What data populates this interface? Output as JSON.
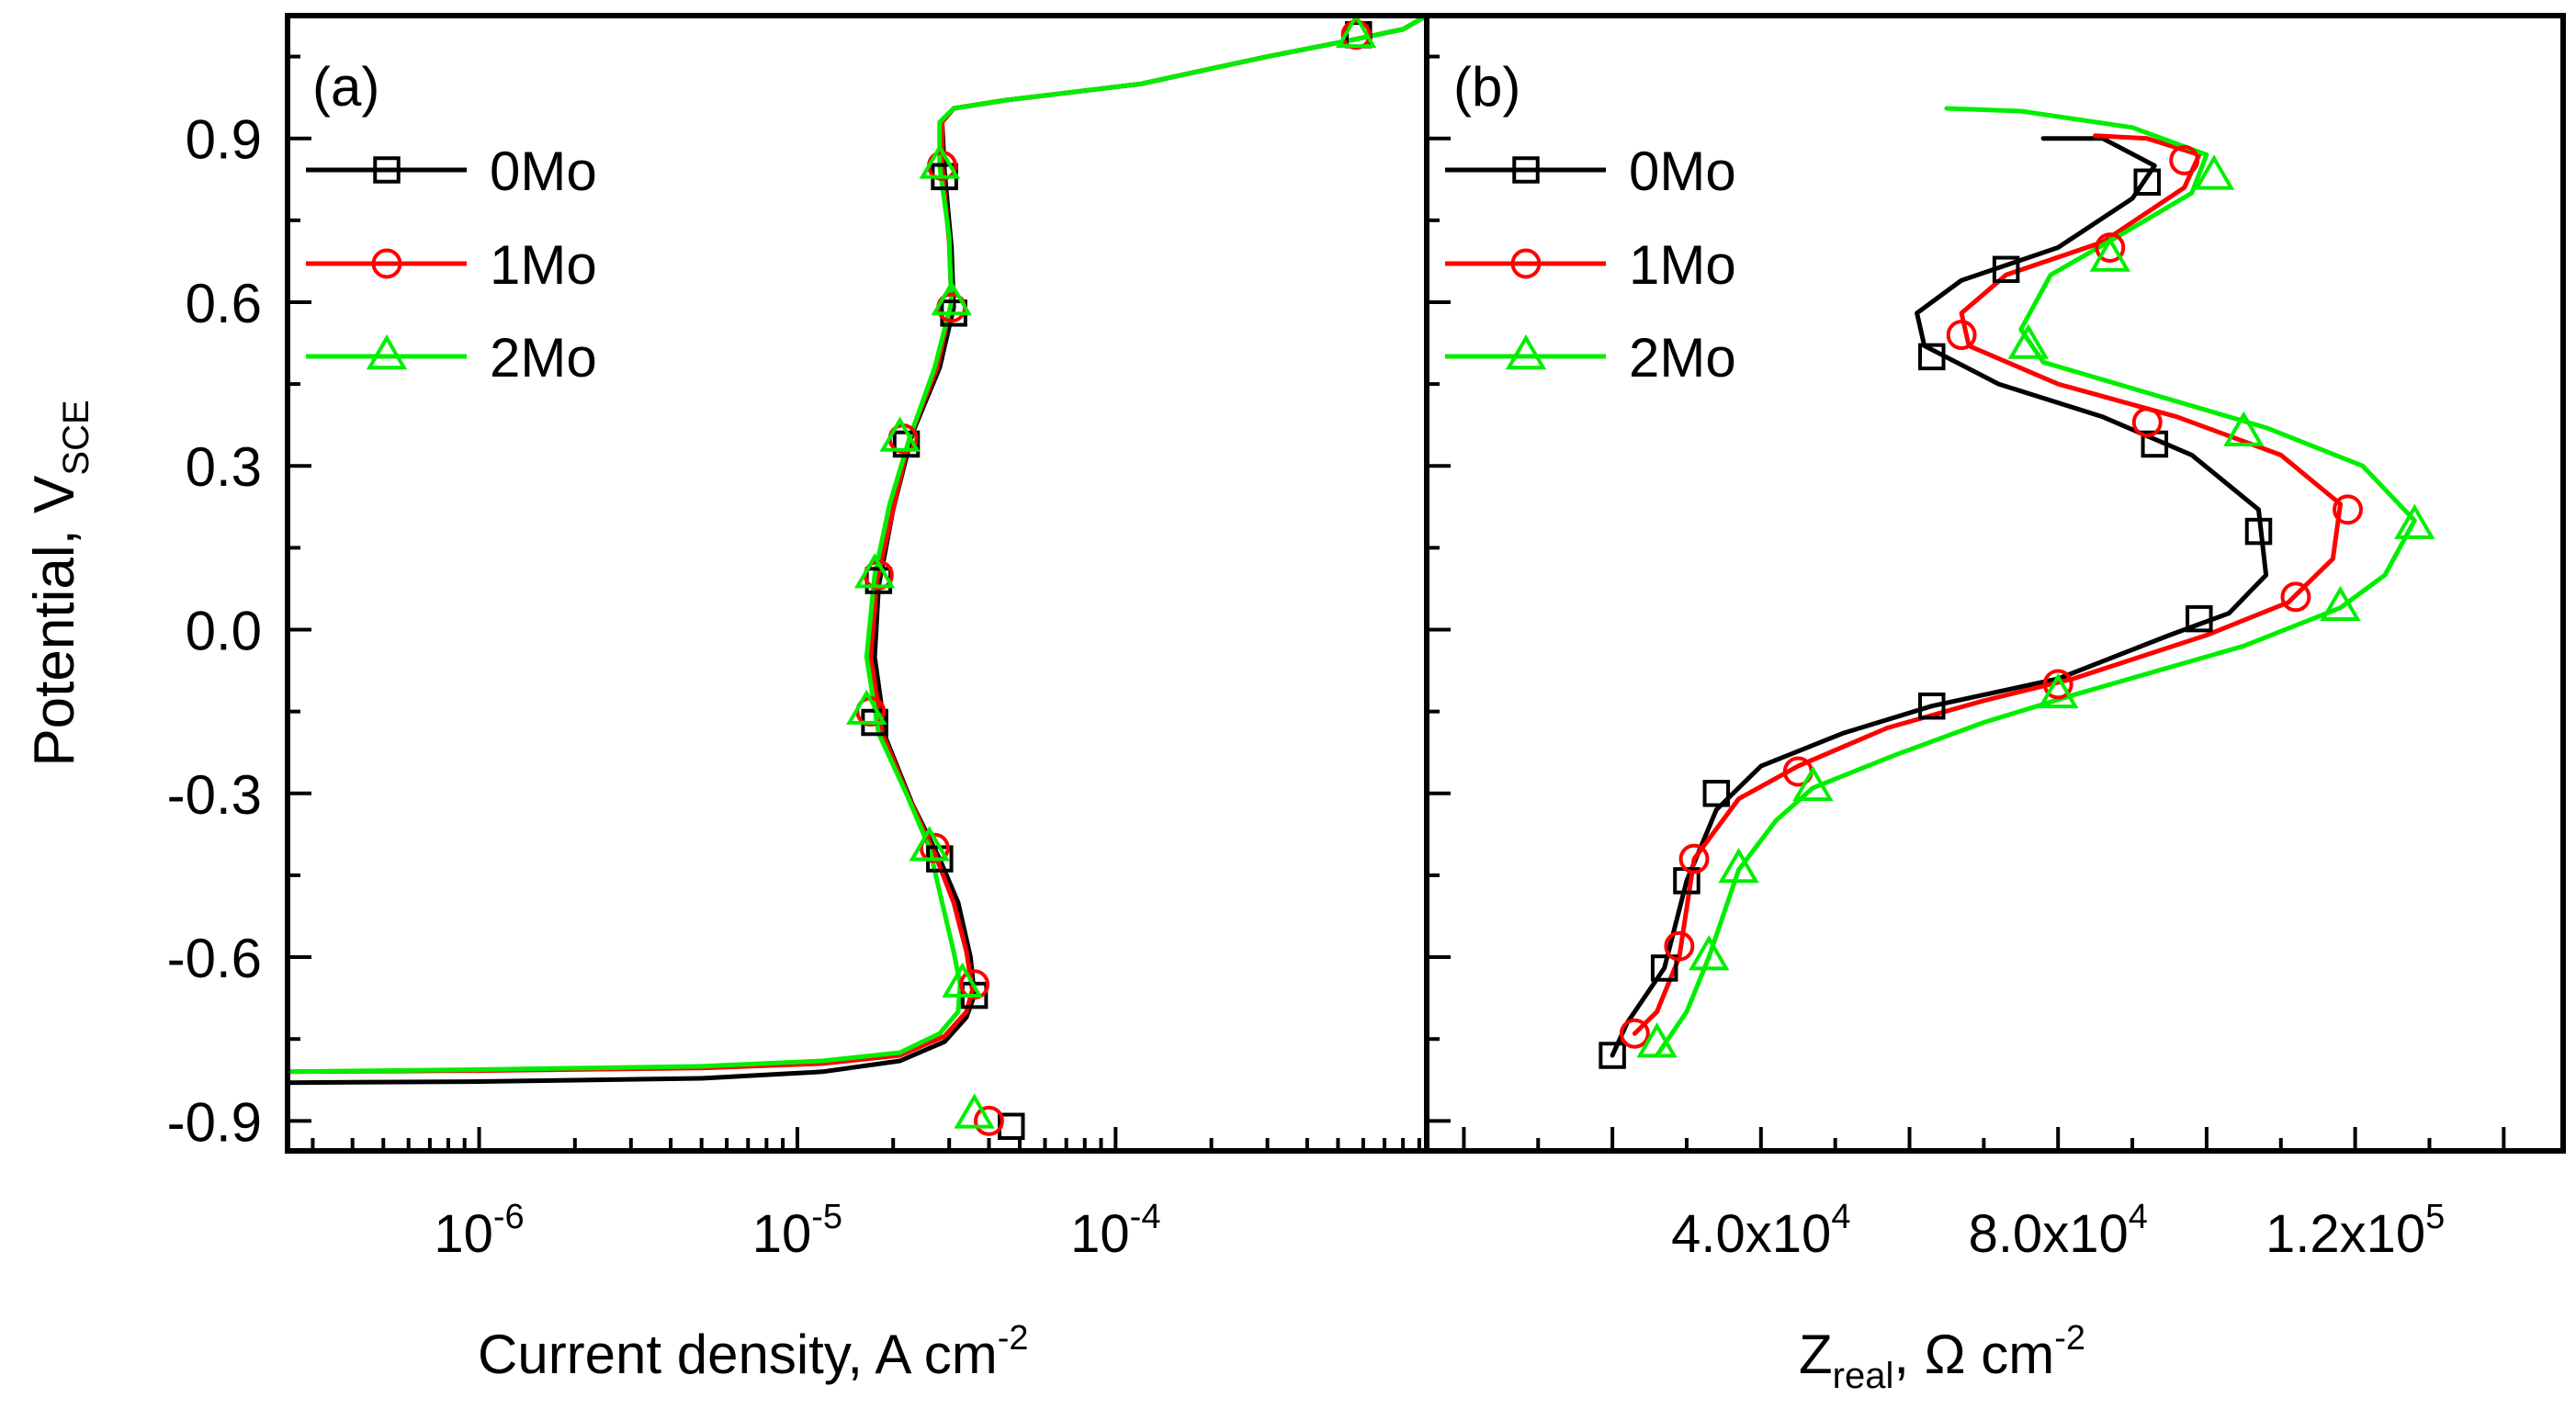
{
  "chart_data": [
    {
      "type": "line",
      "panel_label": "(a)",
      "xlabel": "Current density, A cm",
      "xlabel_sup": "-2",
      "ylabel": "Potential, V",
      "ylabel_sub": "SCE",
      "x_scale": "log",
      "xlim": [
        2.5e-07,
        0.00095
      ],
      "ylim": [
        -0.955,
        1.125
      ],
      "x_ticks": [
        {
          "value": 1e-06,
          "base": "10",
          "exp": "-6"
        },
        {
          "value": 1e-05,
          "base": "10",
          "exp": "-5"
        },
        {
          "value": 0.0001,
          "base": "10",
          "exp": "-4"
        }
      ],
      "y_ticks": [
        {
          "value": 0.9,
          "label": "0.9"
        },
        {
          "value": 0.6,
          "label": "0.6"
        },
        {
          "value": 0.3,
          "label": "0.3"
        },
        {
          "value": 0.0,
          "label": "0.0"
        },
        {
          "value": -0.3,
          "label": "-0.3"
        },
        {
          "value": -0.6,
          "label": "-0.6"
        },
        {
          "value": -0.9,
          "label": "-0.9"
        }
      ],
      "legend_position": "top-left",
      "grid": false,
      "series": [
        {
          "name": "0Mo",
          "color": "#000000",
          "marker": "square",
          "points": [
            [
              2.5e-07,
              -0.83
            ],
            [
              1e-06,
              -0.828
            ],
            [
              5e-06,
              -0.822
            ],
            [
              1.2e-05,
              -0.81
            ],
            [
              2.1e-05,
              -0.79
            ],
            [
              2.9e-05,
              -0.755
            ],
            [
              3.4e-05,
              -0.71
            ],
            [
              3.6e-05,
              -0.67
            ],
            [
              3.5e-05,
              -0.6
            ],
            [
              3.2e-05,
              -0.5
            ],
            [
              2.8e-05,
              -0.42
            ],
            [
              2.3e-05,
              -0.32
            ],
            [
              1.9e-05,
              -0.2
            ],
            [
              1.75e-05,
              -0.05
            ],
            [
              1.8e-05,
              0.08
            ],
            [
              2e-05,
              0.22
            ],
            [
              2.3e-05,
              0.36
            ],
            [
              2.8e-05,
              0.48
            ],
            [
              3.1e-05,
              0.59
            ],
            [
              3.05e-05,
              0.7
            ],
            [
              2.9e-05,
              0.84
            ],
            [
              2.85e-05,
              0.93
            ],
            [
              3.1e-05,
              0.955
            ],
            [
              4.5e-05,
              0.97
            ],
            [
              0.00012,
              1.0
            ],
            [
              0.0003,
              1.05
            ],
            [
              0.00055,
              1.08
            ],
            [
              0.0008,
              1.1
            ],
            [
              0.00095,
              1.125
            ]
          ],
          "markers": [
            [
              2.9e-05,
              0.83
            ],
            [
              3.1e-05,
              0.58
            ],
            [
              2.2e-05,
              0.34
            ],
            [
              1.8e-05,
              0.09
            ],
            [
              1.75e-05,
              -0.17
            ],
            [
              2.8e-05,
              -0.42
            ],
            [
              3.6e-05,
              -0.67
            ],
            [
              4.7e-05,
              -0.91
            ],
            [
              0.00058,
              1.09
            ]
          ]
        },
        {
          "name": "1Mo",
          "color": "#ff0000",
          "marker": "circle",
          "points": [
            [
              2.5e-07,
              -0.81
            ],
            [
              1e-06,
              -0.808
            ],
            [
              5e-06,
              -0.803
            ],
            [
              1.2e-05,
              -0.795
            ],
            [
              2.1e-05,
              -0.78
            ],
            [
              2.9e-05,
              -0.745
            ],
            [
              3.4e-05,
              -0.7
            ],
            [
              3.55e-05,
              -0.66
            ],
            [
              3.4e-05,
              -0.59
            ],
            [
              3.1e-05,
              -0.5
            ],
            [
              2.7e-05,
              -0.41
            ],
            [
              2.25e-05,
              -0.31
            ],
            [
              1.85e-05,
              -0.19
            ],
            [
              1.7e-05,
              -0.05
            ],
            [
              1.78e-05,
              0.09
            ],
            [
              2e-05,
              0.22
            ],
            [
              2.25e-05,
              0.35
            ],
            [
              2.75e-05,
              0.48
            ],
            [
              3.05e-05,
              0.6
            ],
            [
              3e-05,
              0.71
            ],
            [
              2.85e-05,
              0.85
            ],
            [
              2.85e-05,
              0.93
            ],
            [
              3.1e-05,
              0.955
            ],
            [
              4.5e-05,
              0.97
            ],
            [
              0.00012,
              1.0
            ],
            [
              0.0003,
              1.05
            ],
            [
              0.00055,
              1.08
            ],
            [
              0.0008,
              1.1
            ],
            [
              0.00095,
              1.125
            ]
          ],
          "markers": [
            [
              2.85e-05,
              0.85
            ],
            [
              3.05e-05,
              0.59
            ],
            [
              2.15e-05,
              0.35
            ],
            [
              1.8e-05,
              0.1
            ],
            [
              1.7e-05,
              -0.15
            ],
            [
              2.7e-05,
              -0.4
            ],
            [
              3.6e-05,
              -0.65
            ],
            [
              4e-05,
              -0.9
            ],
            [
              0.00057,
              1.09
            ]
          ]
        },
        {
          "name": "2Mo",
          "color": "#00ee00",
          "marker": "triangle",
          "points": [
            [
              2.5e-07,
              -0.81
            ],
            [
              1e-06,
              -0.806
            ],
            [
              5e-06,
              -0.8
            ],
            [
              1.2e-05,
              -0.79
            ],
            [
              2.1e-05,
              -0.775
            ],
            [
              2.8e-05,
              -0.74
            ],
            [
              3.2e-05,
              -0.7
            ],
            [
              3.25e-05,
              -0.65
            ],
            [
              3.1e-05,
              -0.59
            ],
            [
              2.85e-05,
              -0.5
            ],
            [
              2.6e-05,
              -0.4
            ],
            [
              2.2e-05,
              -0.3
            ],
            [
              1.8e-05,
              -0.19
            ],
            [
              1.65e-05,
              -0.05
            ],
            [
              1.75e-05,
              0.1
            ],
            [
              1.95e-05,
              0.23
            ],
            [
              2.25e-05,
              0.35
            ],
            [
              2.7e-05,
              0.48
            ],
            [
              3.05e-05,
              0.6
            ],
            [
              3e-05,
              0.72
            ],
            [
              2.8e-05,
              0.85
            ],
            [
              2.8e-05,
              0.93
            ],
            [
              3.1e-05,
              0.955
            ],
            [
              4.5e-05,
              0.97
            ],
            [
              0.00012,
              1.0
            ],
            [
              0.0003,
              1.05
            ],
            [
              0.00055,
              1.08
            ],
            [
              0.0008,
              1.1
            ],
            [
              0.00095,
              1.125
            ]
          ],
          "markers": [
            [
              2.8e-05,
              0.85
            ],
            [
              3.05e-05,
              0.6
            ],
            [
              2.1e-05,
              0.35
            ],
            [
              1.75e-05,
              0.1
            ],
            [
              1.65e-05,
              -0.15
            ],
            [
              2.6e-05,
              -0.4
            ],
            [
              3.3e-05,
              -0.65
            ],
            [
              3.6e-05,
              -0.89
            ],
            [
              0.00057,
              1.09
            ]
          ]
        }
      ]
    },
    {
      "type": "line",
      "panel_label": "(b)",
      "xlabel": "Z",
      "xlabel_sub": "real",
      "xlabel_rest": ", Ω cm",
      "xlabel_sup": "-2",
      "x_scale": "linear",
      "xlim": [
        -5000,
        148000
      ],
      "ylim": [
        -0.955,
        1.125
      ],
      "x_ticks": [
        {
          "value": 40000,
          "base": "4.0x10",
          "exp": "4"
        },
        {
          "value": 80000,
          "base": "8.0x10",
          "exp": "4"
        },
        {
          "value": 120000,
          "base": "1.2x10",
          "exp": "5"
        }
      ],
      "legend_position": "top-left",
      "grid": false,
      "series": [
        {
          "name": "0Mo",
          "color": "#000000",
          "marker": "square",
          "points": [
            [
              20000,
              -0.78
            ],
            [
              22000,
              -0.72
            ],
            [
              27000,
              -0.62
            ],
            [
              30000,
              -0.46
            ],
            [
              34000,
              -0.33
            ],
            [
              40000,
              -0.25
            ],
            [
              51000,
              -0.19
            ],
            [
              63000,
              -0.14
            ],
            [
              80000,
              -0.09
            ],
            [
              95000,
              -0.01
            ],
            [
              103000,
              0.03
            ],
            [
              108000,
              0.1
            ],
            [
              107000,
              0.22
            ],
            [
              98000,
              0.32
            ],
            [
              86000,
              0.39
            ],
            [
              72000,
              0.45
            ],
            [
              62000,
              0.52
            ],
            [
              61000,
              0.58
            ],
            [
              67000,
              0.64
            ],
            [
              80000,
              0.7
            ],
            [
              90000,
              0.79
            ],
            [
              93000,
              0.85
            ],
            [
              86000,
              0.9
            ],
            [
              78000,
              0.9
            ]
          ],
          "markers": [
            [
              20000,
              -0.78
            ],
            [
              27000,
              -0.62
            ],
            [
              30000,
              -0.46
            ],
            [
              34000,
              -0.3
            ],
            [
              63000,
              -0.14
            ],
            [
              99000,
              0.02
            ],
            [
              107000,
              0.18
            ],
            [
              93000,
              0.34
            ],
            [
              63000,
              0.5
            ],
            [
              73000,
              0.66
            ],
            [
              92000,
              0.82
            ]
          ]
        },
        {
          "name": "1Mo",
          "color": "#ff0000",
          "marker": "circle",
          "points": [
            [
              23000,
              -0.74
            ],
            [
              26000,
              -0.7
            ],
            [
              29000,
              -0.6
            ],
            [
              31000,
              -0.42
            ],
            [
              37000,
              -0.31
            ],
            [
              45000,
              -0.25
            ],
            [
              57000,
              -0.18
            ],
            [
              70000,
              -0.13
            ],
            [
              82000,
              -0.09
            ],
            [
              100000,
              -0.01
            ],
            [
              111000,
              0.05
            ],
            [
              117000,
              0.13
            ],
            [
              118000,
              0.23
            ],
            [
              110000,
              0.32
            ],
            [
              96000,
              0.39
            ],
            [
              80000,
              0.45
            ],
            [
              68000,
              0.52
            ],
            [
              67000,
              0.58
            ],
            [
              73000,
              0.65
            ],
            [
              86000,
              0.71
            ],
            [
              97000,
              0.81
            ],
            [
              99000,
              0.87
            ],
            [
              92000,
              0.9
            ],
            [
              85000,
              0.905
            ]
          ],
          "markers": [
            [
              23000,
              -0.74
            ],
            [
              29000,
              -0.58
            ],
            [
              31000,
              -0.42
            ],
            [
              45000,
              -0.26
            ],
            [
              80000,
              -0.1
            ],
            [
              112000,
              0.06
            ],
            [
              119000,
              0.22
            ],
            [
              92000,
              0.38
            ],
            [
              67000,
              0.54
            ],
            [
              87000,
              0.7
            ],
            [
              97000,
              0.86
            ]
          ]
        },
        {
          "name": "2Mo",
          "color": "#00ee00",
          "marker": "triangle",
          "points": [
            [
              26000,
              -0.78
            ],
            [
              30000,
              -0.7
            ],
            [
              33000,
              -0.6
            ],
            [
              37000,
              -0.44
            ],
            [
              42000,
              -0.35
            ],
            [
              47000,
              -0.29
            ],
            [
              58000,
              -0.23
            ],
            [
              70000,
              -0.17
            ],
            [
              82000,
              -0.12
            ],
            [
              105000,
              -0.03
            ],
            [
              118000,
              0.04
            ],
            [
              124000,
              0.1
            ],
            [
              128000,
              0.2
            ],
            [
              121000,
              0.3
            ],
            [
              108000,
              0.37
            ],
            [
              93000,
              0.43
            ],
            [
              78000,
              0.49
            ],
            [
              75000,
              0.55
            ],
            [
              79000,
              0.65
            ],
            [
              88000,
              0.72
            ],
            [
              98000,
              0.8
            ],
            [
              100000,
              0.87
            ],
            [
              90000,
              0.92
            ],
            [
              75000,
              0.95
            ],
            [
              65000,
              0.955
            ]
          ],
          "markers": [
            [
              26000,
              -0.76
            ],
            [
              33000,
              -0.6
            ],
            [
              37000,
              -0.44
            ],
            [
              47000,
              -0.29
            ],
            [
              80000,
              -0.12
            ],
            [
              118000,
              0.04
            ],
            [
              128000,
              0.19
            ],
            [
              105000,
              0.36
            ],
            [
              76000,
              0.52
            ],
            [
              87000,
              0.68
            ],
            [
              101000,
              0.83
            ]
          ]
        }
      ]
    }
  ]
}
